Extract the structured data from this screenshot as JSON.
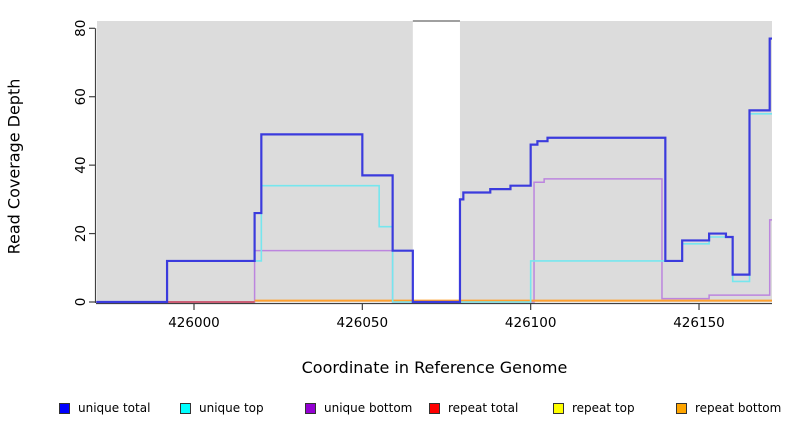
{
  "chart_data": {
    "type": "line",
    "subtype": "step-coverage",
    "title": "",
    "xlabel": "Coordinate in Reference Genome",
    "ylabel": "Read Coverage Depth",
    "x_ticks": [
      426000,
      426050,
      426100,
      426150
    ],
    "y_ticks": [
      0,
      20,
      40,
      60,
      80
    ],
    "xlim": [
      425971,
      426172
    ],
    "ylim": [
      0,
      82
    ],
    "grid": false,
    "plot_background": "#DCDCDC",
    "masked_region": {
      "from": 426065,
      "to": 426079,
      "fill": "#FFFFFF",
      "top_border": "#808080"
    },
    "legend_position": "bottom",
    "series": [
      {
        "name": "unique total",
        "legend_color": "#0000FF",
        "line_color": "#3B3BDD",
        "steps": [
          [
            425971,
            0
          ],
          [
            425992,
            12
          ],
          [
            426018,
            26
          ],
          [
            426020,
            49
          ],
          [
            426050,
            37
          ],
          [
            426059,
            15
          ],
          [
            426065,
            0
          ],
          [
            426079,
            30
          ],
          [
            426080,
            32
          ],
          [
            426088,
            33
          ],
          [
            426094,
            34
          ],
          [
            426100,
            46
          ],
          [
            426102,
            47
          ],
          [
            426105,
            48
          ],
          [
            426140,
            12
          ],
          [
            426145,
            18
          ],
          [
            426153,
            20
          ],
          [
            426158,
            19
          ],
          [
            426160,
            8
          ],
          [
            426165,
            56
          ],
          [
            426171,
            77
          ],
          [
            426172,
            77
          ]
        ]
      },
      {
        "name": "unique top",
        "legend_color": "#00FFFF",
        "line_color": "#76E6EE",
        "steps": [
          [
            425971,
            0
          ],
          [
            425992,
            12
          ],
          [
            426020,
            34
          ],
          [
            426055,
            22
          ],
          [
            426059,
            0
          ],
          [
            426100,
            12
          ],
          [
            426145,
            17
          ],
          [
            426153,
            19
          ],
          [
            426160,
            6
          ],
          [
            426165,
            55
          ],
          [
            426172,
            55
          ]
        ]
      },
      {
        "name": "unique bottom",
        "legend_color": "#9400D3",
        "line_color": "#BC85DE",
        "steps": [
          [
            425971,
            0
          ],
          [
            426018,
            15
          ],
          [
            426059,
            0
          ],
          [
            426101,
            35
          ],
          [
            426104,
            36
          ],
          [
            426139,
            1
          ],
          [
            426153,
            2
          ],
          [
            426171,
            24
          ],
          [
            426172,
            24
          ]
        ]
      },
      {
        "name": "repeat total",
        "legend_color": "#FF0000",
        "line_color": "#CC4455",
        "steps": [
          [
            425971,
            0
          ],
          [
            426018,
            0
          ]
        ]
      },
      {
        "name": "repeat top",
        "legend_color": "#FFFF00",
        "line_color": "#EEEE44",
        "steps": [
          [
            426079,
            0
          ],
          [
            426100,
            0
          ]
        ]
      },
      {
        "name": "repeat bottom",
        "legend_color": "#FFA500",
        "line_color": "#FFA02E",
        "steps": [
          [
            426018,
            0.4
          ],
          [
            426172,
            0.4
          ]
        ]
      }
    ]
  }
}
